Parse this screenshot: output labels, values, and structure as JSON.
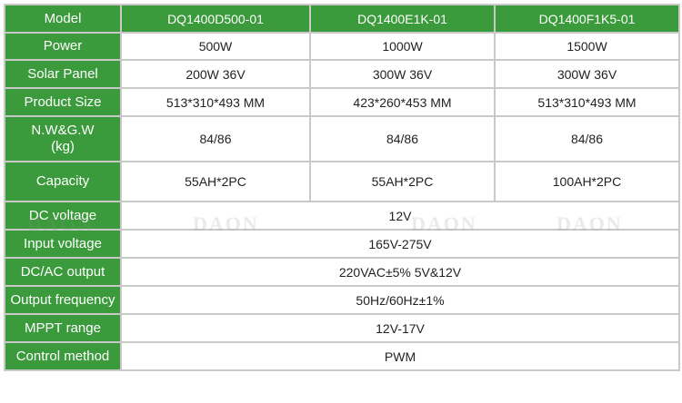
{
  "table": {
    "header": {
      "label": "Model",
      "models": [
        "DQ1400D500-01",
        "DQ1400E1K-01",
        "DQ1400F1K5-01"
      ]
    },
    "rows": [
      {
        "label": "Power",
        "values": [
          "500W",
          "1000W",
          "1500W"
        ]
      },
      {
        "label": "Solar Panel",
        "values": [
          "200W 36V",
          "300W 36V",
          "300W 36V"
        ]
      },
      {
        "label": "Product Size",
        "values": [
          "513*310*493 MM",
          "423*260*453 MM",
          "513*310*493 MM"
        ]
      },
      {
        "label": "N.W&G.W",
        "label2": "(kg)",
        "values": [
          "84/86",
          "84/86",
          "84/86"
        ]
      },
      {
        "label": "Capacity",
        "values": [
          "55AH*2PC",
          "55AH*2PC",
          "100AH*2PC"
        ]
      }
    ],
    "shared_rows": [
      {
        "label": "DC voltage",
        "value": "12V"
      },
      {
        "label": "Input voltage",
        "value": "165V-275V"
      },
      {
        "label": "DC/AC output",
        "value": "220VAC±5% 5V&12V"
      },
      {
        "label": "Output frequency",
        "value": "50Hz/60Hz±1%"
      },
      {
        "label": "MPPT range",
        "value": "12V-17V"
      },
      {
        "label": "Control method",
        "value": "PWM"
      }
    ]
  },
  "watermark": {
    "text": "DAON"
  },
  "colors": {
    "header_green": "#3b9a3b",
    "border": "#c9c9c9",
    "text": "#222222"
  }
}
